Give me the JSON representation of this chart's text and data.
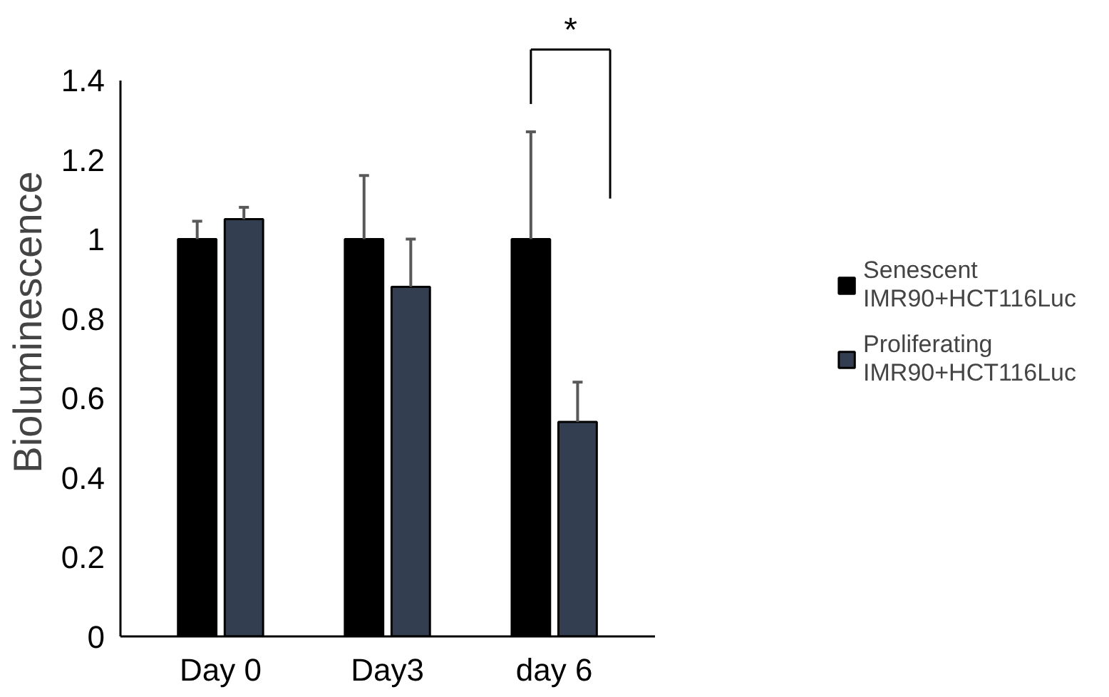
{
  "chart_data": {
    "type": "bar",
    "ylabel": "Bioluminescence",
    "categories": [
      "Day 0",
      "Day3",
      "day 6"
    ],
    "series": [
      {
        "name": "Senescent IMR90+HCT116Luc",
        "color": "#000000",
        "values": [
          1.0,
          1.0,
          1.0
        ],
        "errors": [
          [
            1.0,
            1.045
          ],
          [
            1.0,
            1.16
          ],
          [
            1.0,
            1.27
          ]
        ]
      },
      {
        "name": "Proliferating IMR90+HCT116Luc",
        "color": "#333f50",
        "values": [
          1.05,
          0.88,
          0.54
        ],
        "errors": [
          [
            1.05,
            1.08
          ],
          [
            0.88,
            1.0
          ],
          [
            0.54,
            0.64
          ]
        ]
      }
    ],
    "ylim": [
      0,
      1.4
    ],
    "yticks": [
      0,
      0.2,
      0.4,
      0.6,
      0.8,
      1,
      1.2,
      1.4
    ],
    "grid": false,
    "legend": "right",
    "annotations": [
      "*"
    ]
  }
}
